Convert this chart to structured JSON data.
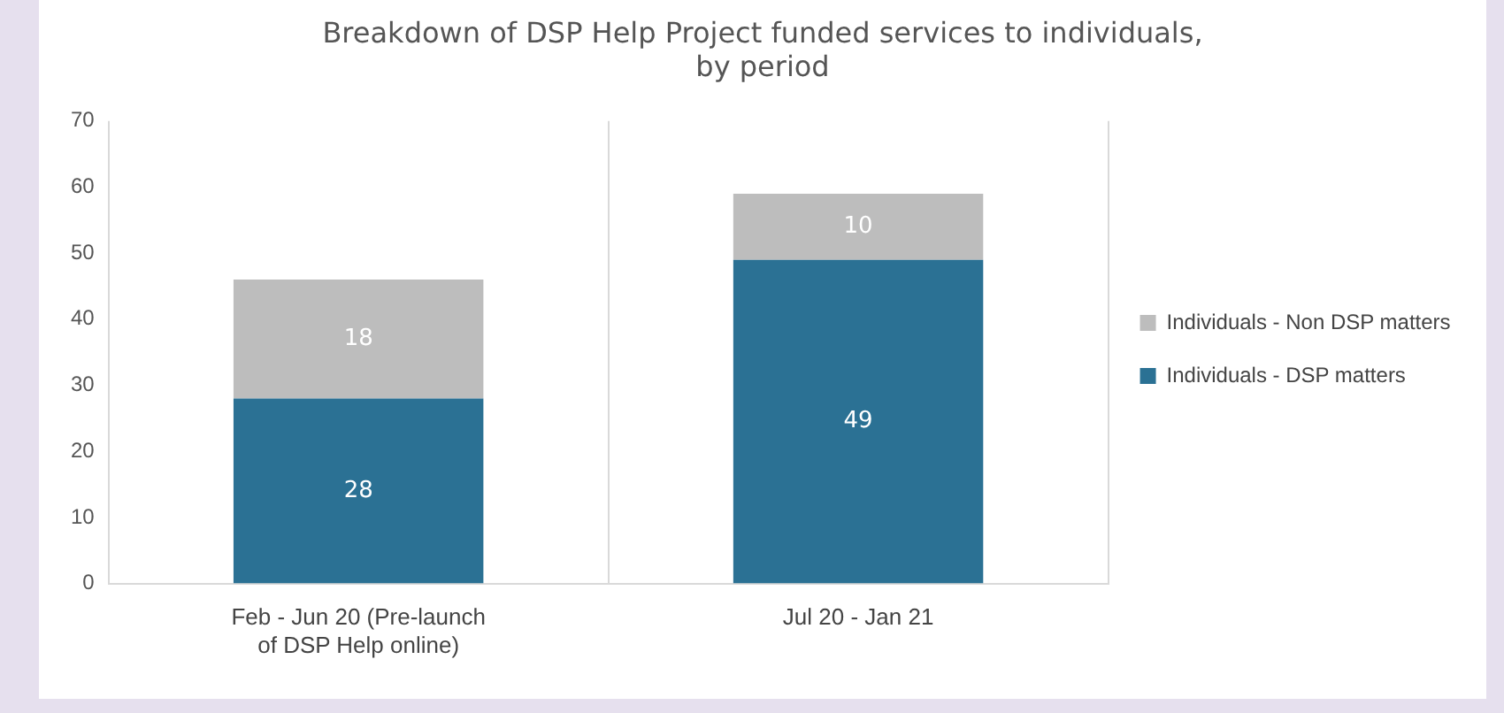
{
  "chart_data": {
    "type": "bar",
    "title": "Breakdown of DSP Help Project funded services to individuals, by period",
    "categories": [
      "Feb - Jun 20 (Pre-launch of DSP Help online)",
      "Jul 20 - Jan 21"
    ],
    "series": [
      {
        "name": "Individuals - DSP matters",
        "color": "#2b7194",
        "values": [
          28,
          49
        ]
      },
      {
        "name": "Individuals - Non DSP matters",
        "color": "#bdbdbd",
        "values": [
          18,
          10
        ]
      }
    ],
    "stacked": true,
    "ylim": [
      0,
      70
    ],
    "yticks": [
      0,
      10,
      20,
      30,
      40,
      50,
      60,
      70
    ],
    "grid": "x",
    "legend": "right",
    "data_labels": true
  }
}
